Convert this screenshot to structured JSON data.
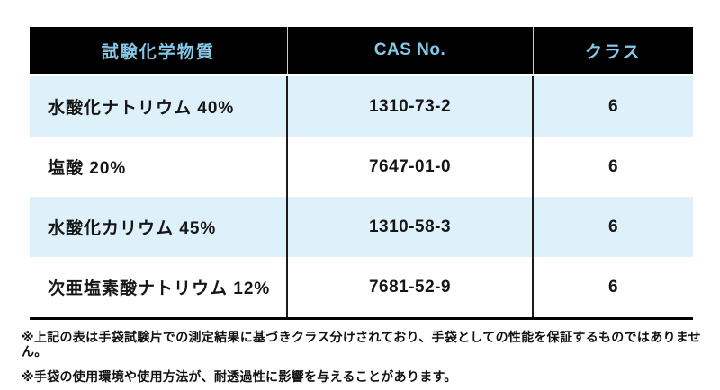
{
  "table": {
    "headers": [
      "試験化学物質",
      "CAS No.",
      "クラス"
    ],
    "rows": [
      {
        "chemical": "水酸化ナトリウム 40%",
        "cas": "1310-73-2",
        "class": "6"
      },
      {
        "chemical": "塩酸 20%",
        "cas": "7647-01-0",
        "class": "6"
      },
      {
        "chemical": "水酸化カリウム 45%",
        "cas": "1310-58-3",
        "class": "6"
      },
      {
        "chemical": "次亜塩素酸ナトリウム 12%",
        "cas": "7681-52-9",
        "class": "6"
      }
    ]
  },
  "footnotes": [
    "※上記の表は手袋試験片での測定結果に基づきクラス分けされており、手袋としての性能を保証するものではありません。",
    "※手袋の使用環境や使用方法が、耐透過性に影響を与えることがあります。"
  ],
  "colors": {
    "header_bg": "#000000",
    "header_text": "#85c8e8",
    "row_alt_bg": "#def0fa",
    "row_bg": "#ffffff",
    "cell_text": "#161616"
  }
}
